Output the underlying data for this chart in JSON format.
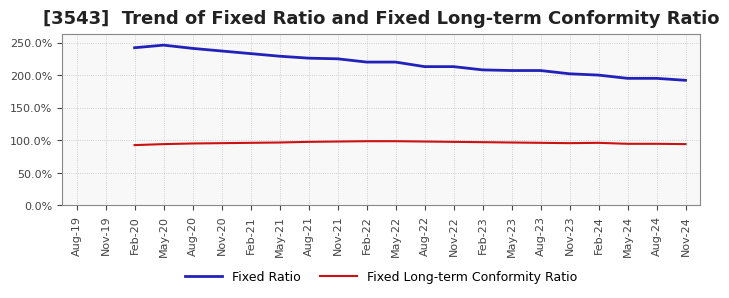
{
  "title": "[3543]  Trend of Fixed Ratio and Fixed Long-term Conformity Ratio",
  "x_labels": [
    "Aug-19",
    "Nov-19",
    "Feb-20",
    "May-20",
    "Aug-20",
    "Nov-20",
    "Feb-21",
    "May-21",
    "Aug-21",
    "Nov-21",
    "Feb-22",
    "May-22",
    "Aug-22",
    "Nov-22",
    "Feb-23",
    "May-23",
    "Aug-23",
    "Nov-23",
    "Feb-24",
    "May-24",
    "Aug-24",
    "Nov-24"
  ],
  "fixed_ratio": [
    null,
    null,
    242.0,
    246.0,
    241.0,
    237.0,
    233.0,
    229.0,
    226.0,
    225.0,
    220.0,
    220.0,
    213.0,
    213.0,
    208.0,
    207.0,
    207.0,
    202.0,
    200.0,
    195.0,
    195.0,
    192.0
  ],
  "fixed_lt_ratio": [
    null,
    null,
    92.5,
    94.0,
    95.0,
    95.5,
    96.0,
    96.5,
    97.5,
    98.0,
    98.5,
    98.5,
    98.0,
    97.5,
    97.0,
    96.5,
    96.0,
    95.5,
    96.0,
    94.5,
    94.5,
    94.0
  ],
  "fixed_ratio_color": "#2222bb",
  "fixed_lt_ratio_color": "#cc1111",
  "ylim": [
    0,
    262.5
  ],
  "yticks": [
    0,
    50,
    100,
    150,
    200,
    250
  ],
  "background_color": "#ffffff",
  "plot_bg_color": "#f8f8f8",
  "grid_color": "#bbbbbb",
  "legend_labels": [
    "Fixed Ratio",
    "Fixed Long-term Conformity Ratio"
  ],
  "title_fontsize": 13,
  "tick_fontsize": 8,
  "legend_fontsize": 9
}
